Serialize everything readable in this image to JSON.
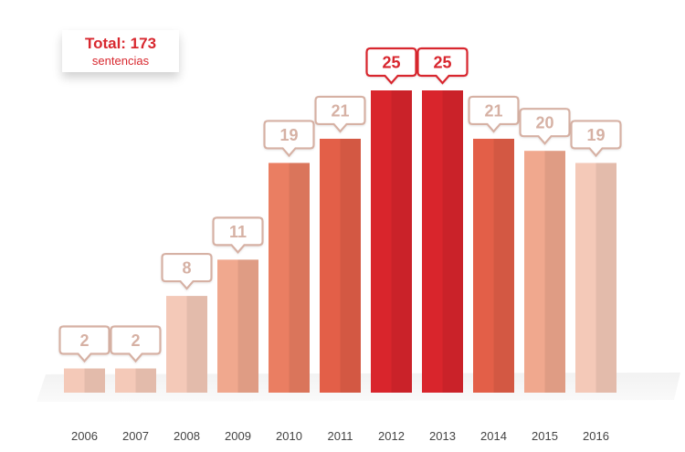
{
  "total": {
    "title": "Total: 173",
    "subtitle": "sentencias"
  },
  "colors": {
    "pale": "#f4c9b8",
    "light": "#f0a88e",
    "medium": "#ea7e62",
    "strong": "#e35f48",
    "peak": "#d9252c",
    "label_pale": "#d6b1a4",
    "label_strong": "#d8282f",
    "axis_text": "#444444"
  },
  "chart_data": {
    "type": "bar",
    "title": "",
    "xlabel": "",
    "ylabel": "",
    "ylim": [
      0,
      25
    ],
    "categories": [
      "2006",
      "2007",
      "2008",
      "2009",
      "2010",
      "2011",
      "2012",
      "2013",
      "2014",
      "2015",
      "2016"
    ],
    "values": [
      2,
      2,
      8,
      11,
      19,
      21,
      25,
      25,
      21,
      20,
      19
    ],
    "value_labels": [
      "2",
      "2",
      "8",
      "11",
      "19",
      "21",
      "25",
      "25",
      "21",
      "20",
      "19"
    ],
    "bar_color_keys": [
      "pale",
      "pale",
      "pale",
      "light",
      "medium",
      "strong",
      "peak",
      "peak",
      "strong",
      "light",
      "pale"
    ]
  }
}
